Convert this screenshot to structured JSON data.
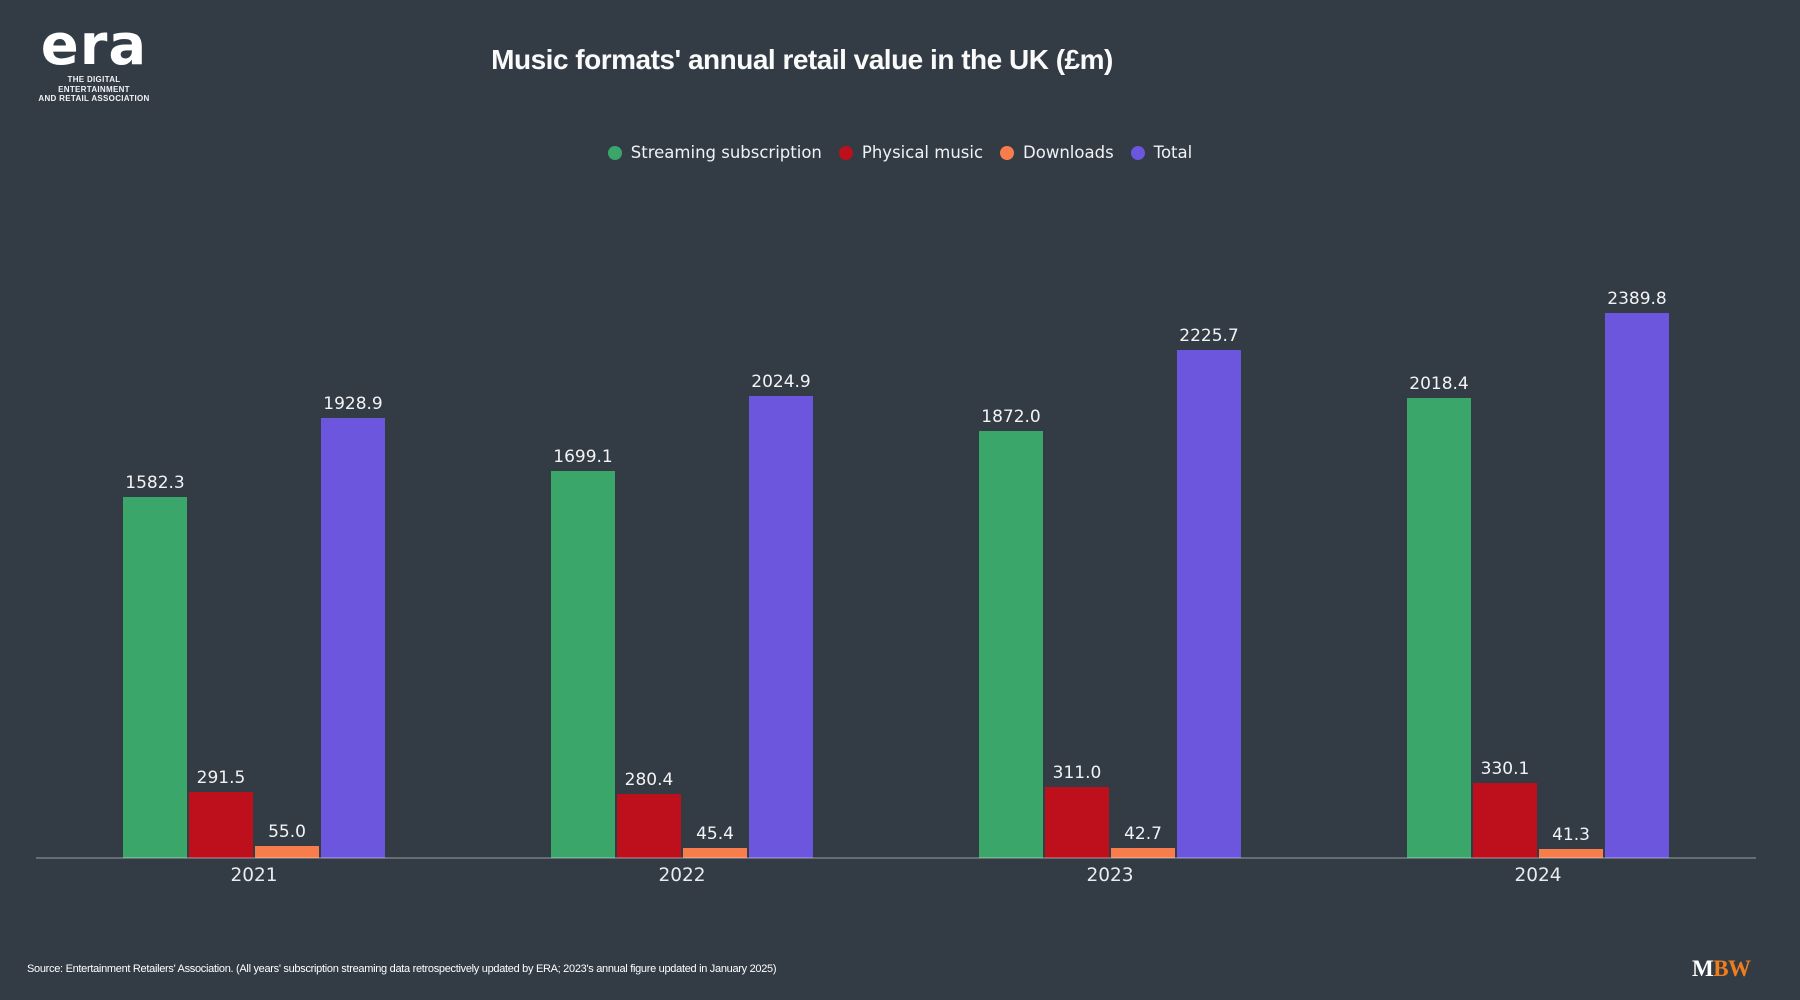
{
  "logo": {
    "name": "era",
    "tagline_line1": "THE DIGITAL ENTERTAINMENT",
    "tagline_line2": "AND RETAIL ASSOCIATION"
  },
  "header": {
    "title": "Music formats' annual retail value in the UK (£m)"
  },
  "chart_data": {
    "type": "bar",
    "title": "Music formats' annual retail value in the UK (£m)",
    "categories": [
      "2021",
      "2022",
      "2023",
      "2024"
    ],
    "series": [
      {
        "name": "Streaming subscription",
        "color": "#3aa669",
        "values": [
          1582.3,
          1699.1,
          1872.0,
          2018.4
        ]
      },
      {
        "name": "Physical music",
        "color": "#bd0f1c",
        "values": [
          291.5,
          280.4,
          311.0,
          330.1
        ]
      },
      {
        "name": "Downloads",
        "color": "#f87d4c",
        "values": [
          55.0,
          45.4,
          42.7,
          41.3
        ]
      },
      {
        "name": "Total",
        "color": "#6c56dd",
        "values": [
          1928.9,
          2024.9,
          2225.7,
          2389.8
        ]
      }
    ],
    "xlabel": "",
    "ylabel": "",
    "ylim": [
      0,
      2389.8
    ],
    "grid": false,
    "legend_position": "top",
    "value_labels": true,
    "value_decimals": 1
  },
  "footer": {
    "source": "Source: Entertainment Retailers' Association. (All years' subscription streaming data retrospectively updated by ERA; 2023's annual figure updated in January 2025)",
    "brand_m": "M",
    "brand_bw": "BW"
  },
  "colors": {
    "background": "#333b45",
    "title_text": "#fafafa",
    "value_label_text": "#f2f3f5",
    "axis_label_text": "#e9ebee",
    "axis_line": "rgba(255,255,255,0.25)",
    "brand_orange": "#ee7e1d"
  }
}
